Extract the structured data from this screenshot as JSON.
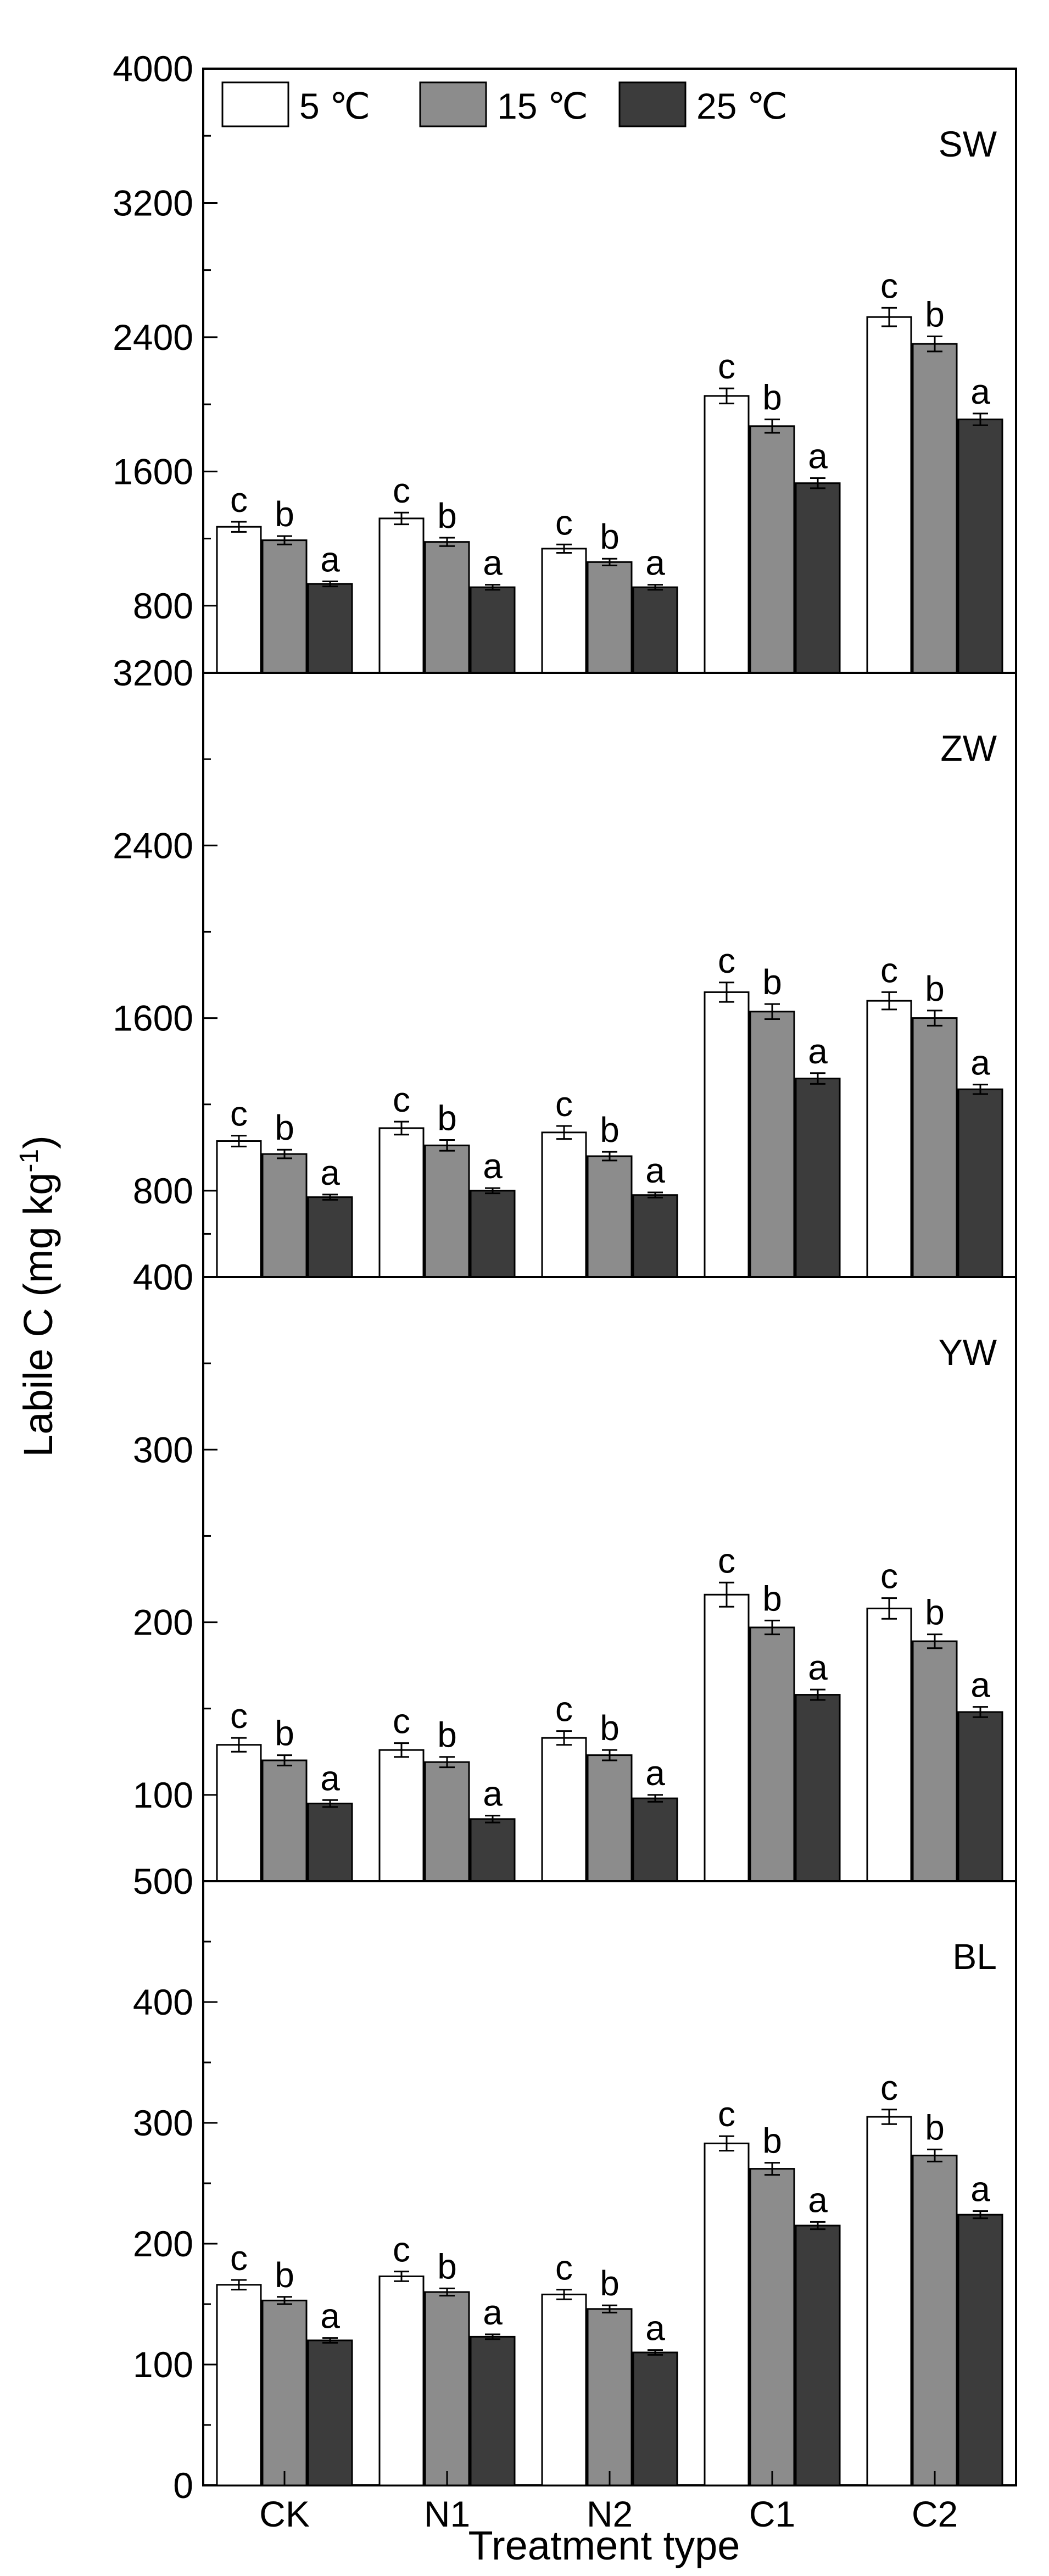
{
  "chart_data": {
    "type": "bar",
    "x_title": "Treatment type",
    "y_title_main": "Labile C (mg kg",
    "y_title_exp": "-1",
    "y_title_close": ")",
    "categories": [
      "CK",
      "N1",
      "N2",
      "C1",
      "C2"
    ],
    "legend": [
      {
        "name": "5 ℃",
        "color": "#ffffff"
      },
      {
        "name": "15 ℃",
        "color": "#8c8c8c"
      },
      {
        "name": "25 ℃",
        "color": "#3c3c3c"
      }
    ],
    "panels": [
      {
        "label": "SW",
        "ylim": [
          400,
          4000
        ],
        "yticks": [
          "800",
          "1600",
          "2400",
          "3200",
          "4000"
        ],
        "series": [
          {
            "name": "5 ℃",
            "values": [
              1270,
              1320,
              1140,
              2050,
              2520
            ],
            "errors": [
              30,
              35,
              25,
              45,
              55
            ],
            "sig": [
              "c",
              "c",
              "c",
              "c",
              "c"
            ]
          },
          {
            "name": "15 ℃",
            "values": [
              1190,
              1180,
              1060,
              1870,
              2360
            ],
            "errors": [
              25,
              25,
              20,
              40,
              45
            ],
            "sig": [
              "b",
              "b",
              "b",
              "b",
              "b"
            ]
          },
          {
            "name": "25 ℃",
            "values": [
              930,
              910,
              910,
              1530,
              1910
            ],
            "errors": [
              15,
              15,
              15,
              30,
              35
            ],
            "sig": [
              "a",
              "a",
              "a",
              "a",
              "a"
            ]
          }
        ]
      },
      {
        "label": "ZW",
        "ylim": [
          400,
          3200
        ],
        "yticks": [
          "400",
          "800",
          "1600",
          "2400",
          "3200"
        ],
        "series": [
          {
            "name": "5 ℃",
            "values": [
              1030,
              1090,
              1070,
              1720,
              1680
            ],
            "errors": [
              25,
              30,
              30,
              45,
              40
            ],
            "sig": [
              "c",
              "c",
              "c",
              "c",
              "c"
            ]
          },
          {
            "name": "15 ℃",
            "values": [
              970,
              1010,
              960,
              1630,
              1600
            ],
            "errors": [
              20,
              25,
              20,
              35,
              35
            ],
            "sig": [
              "b",
              "b",
              "b",
              "b",
              "b"
            ]
          },
          {
            "name": "25 ℃",
            "values": [
              770,
              800,
              780,
              1320,
              1270
            ],
            "errors": [
              12,
              12,
              12,
              25,
              22
            ],
            "sig": [
              "a",
              "a",
              "a",
              "a",
              "a"
            ]
          }
        ]
      },
      {
        "label": "YW",
        "ylim": [
          50,
          400
        ],
        "yticks": [
          "100",
          "200",
          "300",
          "400"
        ],
        "series": [
          {
            "name": "5 ℃",
            "values": [
              129,
              126,
              133,
              216,
              208
            ],
            "errors": [
              4,
              4,
              4,
              7,
              6
            ],
            "sig": [
              "c",
              "c",
              "c",
              "c",
              "c"
            ]
          },
          {
            "name": "15 ℃",
            "values": [
              120,
              119,
              123,
              197,
              189
            ],
            "errors": [
              3,
              3,
              3,
              4,
              4
            ],
            "sig": [
              "b",
              "b",
              "b",
              "b",
              "b"
            ]
          },
          {
            "name": "25 ℃",
            "values": [
              95,
              86,
              98,
              158,
              148
            ],
            "errors": [
              2,
              2,
              2,
              3,
              3
            ],
            "sig": [
              "a",
              "a",
              "a",
              "a",
              "a"
            ]
          }
        ]
      },
      {
        "label": "BL",
        "ylim": [
          0,
          500
        ],
        "yticks": [
          "0",
          "100",
          "200",
          "300",
          "400",
          "500"
        ],
        "series": [
          {
            "name": "5 ℃",
            "values": [
              166,
              173,
              158,
              283,
              305
            ],
            "errors": [
              4,
              4,
              4,
              6,
              6
            ],
            "sig": [
              "c",
              "c",
              "c",
              "c",
              "c"
            ]
          },
          {
            "name": "15 ℃",
            "values": [
              153,
              160,
              146,
              262,
              273
            ],
            "errors": [
              3,
              3,
              3,
              5,
              5
            ],
            "sig": [
              "b",
              "b",
              "b",
              "b",
              "b"
            ]
          },
          {
            "name": "25 ℃",
            "values": [
              120,
              123,
              110,
              215,
              224
            ],
            "errors": [
              2,
              2,
              2,
              3,
              3
            ],
            "sig": [
              "a",
              "a",
              "a",
              "a",
              "a"
            ]
          }
        ]
      }
    ]
  }
}
